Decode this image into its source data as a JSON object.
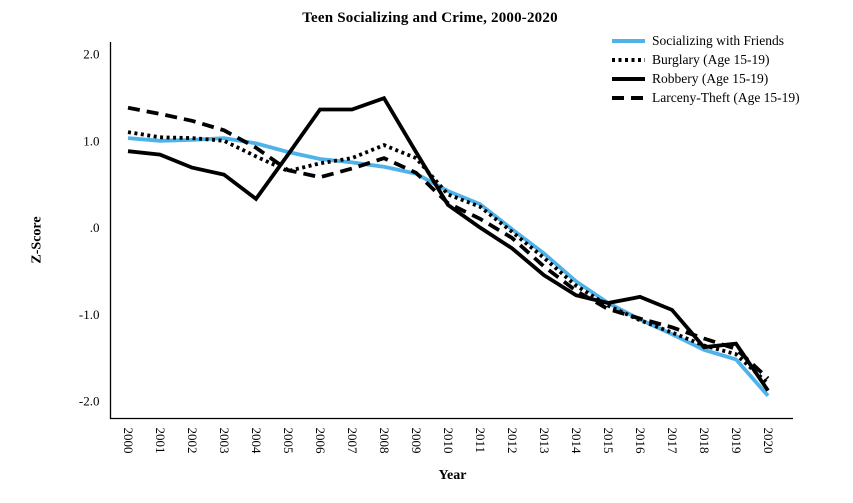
{
  "chart_data": {
    "type": "line",
    "title": "Teen Socializing and Crime, 2000-2020",
    "xlabel": "Year",
    "ylabel": "Z-Score",
    "x": [
      2000,
      2001,
      2002,
      2003,
      2004,
      2005,
      2006,
      2007,
      2008,
      2009,
      2010,
      2011,
      2012,
      2013,
      2014,
      2015,
      2016,
      2017,
      2018,
      2019,
      2020
    ],
    "ylim": [
      -2.2,
      2.2
    ],
    "yticks": [
      {
        "value": 2.0,
        "label": "2.0"
      },
      {
        "value": 1.0,
        "label": "1.0"
      },
      {
        "value": 0.0,
        "label": ".0"
      },
      {
        "value": -1.0,
        "label": "-1.0"
      },
      {
        "value": -2.0,
        "label": "-2.0"
      }
    ],
    "grid": false,
    "legend_position": "top-right",
    "series": [
      {
        "name": "Socializing with Friends",
        "color": "#4fb2e8",
        "style": "solid",
        "values": [
          1.03,
          1.0,
          1.01,
          1.03,
          0.97,
          0.87,
          0.79,
          0.75,
          0.7,
          0.62,
          0.42,
          0.27,
          -0.02,
          -0.3,
          -0.62,
          -0.87,
          -1.06,
          -1.23,
          -1.41,
          -1.52,
          -1.94
        ]
      },
      {
        "name": "Burglary (Age 15-19)",
        "color": "#000000",
        "style": "dotted",
        "values": [
          1.1,
          1.04,
          1.03,
          1.0,
          0.82,
          0.65,
          0.74,
          0.8,
          0.95,
          0.8,
          0.38,
          0.24,
          -0.05,
          -0.35,
          -0.67,
          -0.9,
          -1.07,
          -1.21,
          -1.36,
          -1.46,
          -1.8
        ]
      },
      {
        "name": "Robbery (Age 15-19)",
        "color": "#000000",
        "style": "solid",
        "values": [
          0.88,
          0.84,
          0.69,
          0.61,
          0.33,
          0.84,
          1.36,
          1.36,
          1.49,
          0.87,
          0.26,
          0.0,
          -0.24,
          -0.55,
          -0.78,
          -0.87,
          -0.8,
          -0.95,
          -1.38,
          -1.34,
          -1.88
        ]
      },
      {
        "name": "Larceny-Theft (Age 15-19)",
        "color": "#000000",
        "style": "dashed",
        "values": [
          1.38,
          1.31,
          1.23,
          1.12,
          0.92,
          0.66,
          0.58,
          0.68,
          0.8,
          0.63,
          0.28,
          0.1,
          -0.12,
          -0.45,
          -0.73,
          -0.94,
          -1.05,
          -1.15,
          -1.28,
          -1.4,
          -1.74
        ]
      }
    ]
  }
}
